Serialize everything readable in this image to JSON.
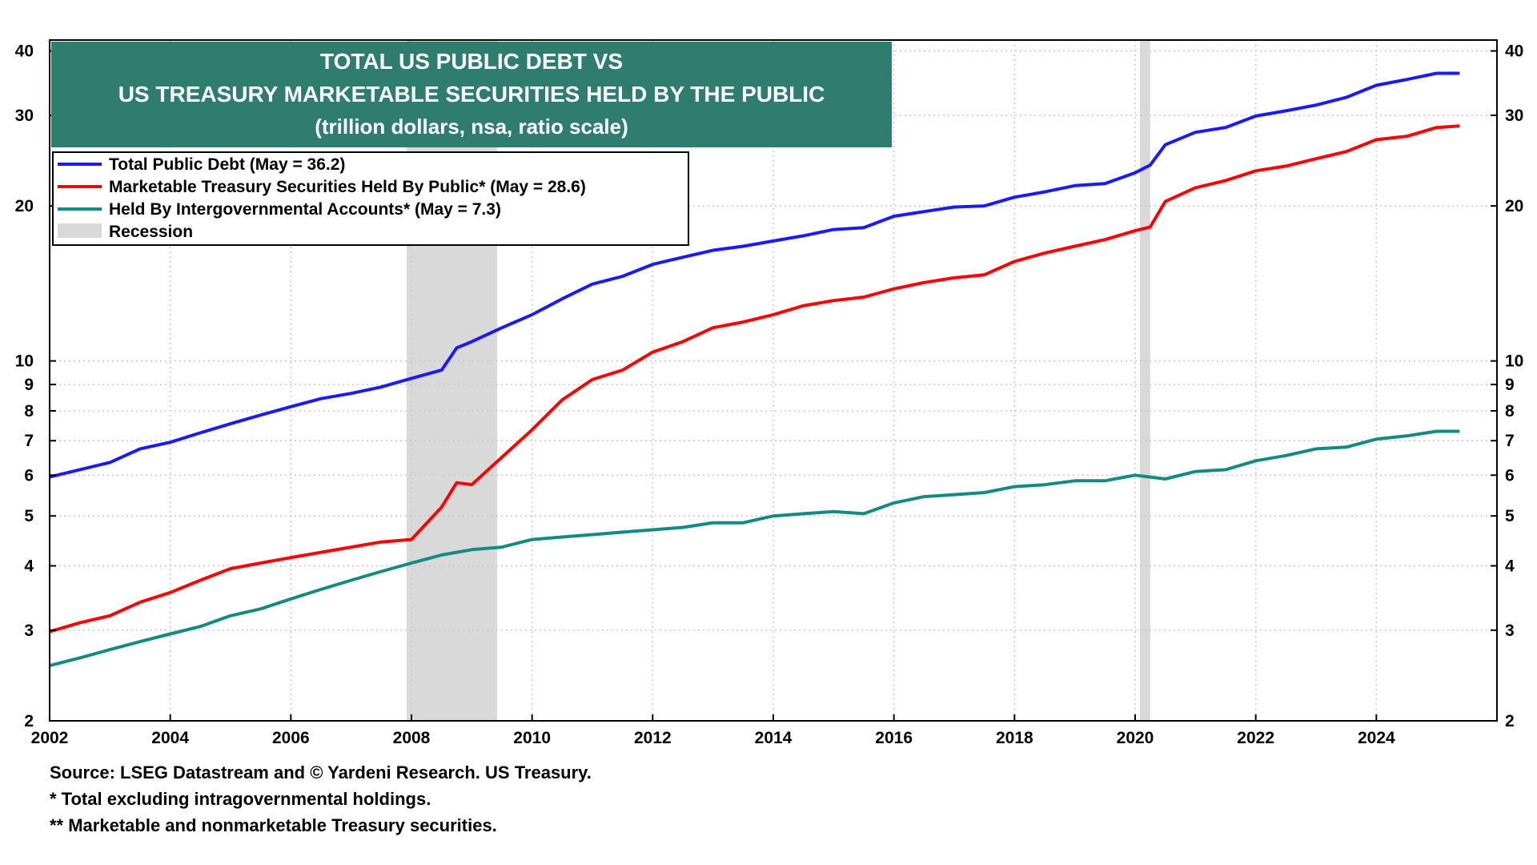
{
  "chart_data": {
    "type": "line",
    "title": [
      "TOTAL US PUBLIC DEBT VS",
      "US TREASURY MARKETABLE SECURITIES HELD BY THE PUBLIC",
      "(trillion dollars, nsa, ratio scale)"
    ],
    "yscale": "log",
    "ylim": [
      2,
      42
    ],
    "xlim": [
      2002,
      2026
    ],
    "y_ticks": [
      2,
      3,
      4,
      5,
      6,
      7,
      8,
      9,
      10,
      20,
      30,
      40
    ],
    "x_ticks": [
      2002,
      2004,
      2006,
      2008,
      2010,
      2012,
      2014,
      2016,
      2018,
      2020,
      2022,
      2024
    ],
    "grid": true,
    "legend_position": "top-left",
    "recessions": [
      [
        2007.92,
        2009.42
      ],
      [
        2020.08,
        2020.25
      ]
    ],
    "series": [
      {
        "name": "Total Public Debt (May = 36.2)",
        "color": "#1a1aff",
        "points": [
          [
            2002.0,
            5.95
          ],
          [
            2002.5,
            6.15
          ],
          [
            2003.0,
            6.35
          ],
          [
            2003.5,
            6.75
          ],
          [
            2004.0,
            6.95
          ],
          [
            2004.5,
            7.25
          ],
          [
            2005.0,
            7.55
          ],
          [
            2005.5,
            7.85
          ],
          [
            2006.0,
            8.15
          ],
          [
            2006.5,
            8.45
          ],
          [
            2007.0,
            8.65
          ],
          [
            2007.5,
            8.9
          ],
          [
            2008.0,
            9.25
          ],
          [
            2008.5,
            9.6
          ],
          [
            2008.75,
            10.6
          ],
          [
            2009.0,
            10.9
          ],
          [
            2009.5,
            11.6
          ],
          [
            2010.0,
            12.3
          ],
          [
            2010.5,
            13.2
          ],
          [
            2011.0,
            14.1
          ],
          [
            2011.5,
            14.6
          ],
          [
            2012.0,
            15.4
          ],
          [
            2012.5,
            15.9
          ],
          [
            2013.0,
            16.4
          ],
          [
            2013.5,
            16.7
          ],
          [
            2014.0,
            17.1
          ],
          [
            2014.5,
            17.5
          ],
          [
            2015.0,
            18.0
          ],
          [
            2015.5,
            18.15
          ],
          [
            2016.0,
            19.1
          ],
          [
            2016.5,
            19.5
          ],
          [
            2017.0,
            19.9
          ],
          [
            2017.5,
            20.0
          ],
          [
            2018.0,
            20.8
          ],
          [
            2018.5,
            21.3
          ],
          [
            2019.0,
            21.9
          ],
          [
            2019.5,
            22.1
          ],
          [
            2020.0,
            23.2
          ],
          [
            2020.25,
            24.0
          ],
          [
            2020.5,
            26.3
          ],
          [
            2021.0,
            27.8
          ],
          [
            2021.5,
            28.4
          ],
          [
            2022.0,
            29.9
          ],
          [
            2022.5,
            30.6
          ],
          [
            2023.0,
            31.4
          ],
          [
            2023.5,
            32.5
          ],
          [
            2024.0,
            34.3
          ],
          [
            2024.5,
            35.2
          ],
          [
            2025.0,
            36.2
          ],
          [
            2025.38,
            36.2
          ]
        ]
      },
      {
        "name": "Marketable Treasury Securities Held By Public* (May = 28.6)",
        "color": "#ff0000",
        "points": [
          [
            2002.0,
            2.98
          ],
          [
            2002.5,
            3.1
          ],
          [
            2003.0,
            3.2
          ],
          [
            2003.5,
            3.4
          ],
          [
            2004.0,
            3.55
          ],
          [
            2004.5,
            3.75
          ],
          [
            2005.0,
            3.95
          ],
          [
            2005.5,
            4.05
          ],
          [
            2006.0,
            4.15
          ],
          [
            2006.5,
            4.25
          ],
          [
            2007.0,
            4.35
          ],
          [
            2007.5,
            4.45
          ],
          [
            2008.0,
            4.5
          ],
          [
            2008.5,
            5.2
          ],
          [
            2008.75,
            5.8
          ],
          [
            2009.0,
            5.75
          ],
          [
            2009.5,
            6.5
          ],
          [
            2010.0,
            7.35
          ],
          [
            2010.5,
            8.4
          ],
          [
            2011.0,
            9.2
          ],
          [
            2011.5,
            9.6
          ],
          [
            2012.0,
            10.4
          ],
          [
            2012.5,
            10.9
          ],
          [
            2013.0,
            11.6
          ],
          [
            2013.5,
            11.9
          ],
          [
            2014.0,
            12.3
          ],
          [
            2014.5,
            12.8
          ],
          [
            2015.0,
            13.1
          ],
          [
            2015.5,
            13.3
          ],
          [
            2016.0,
            13.8
          ],
          [
            2016.5,
            14.2
          ],
          [
            2017.0,
            14.5
          ],
          [
            2017.5,
            14.7
          ],
          [
            2018.0,
            15.6
          ],
          [
            2018.5,
            16.2
          ],
          [
            2019.0,
            16.7
          ],
          [
            2019.5,
            17.2
          ],
          [
            2020.0,
            17.9
          ],
          [
            2020.25,
            18.2
          ],
          [
            2020.5,
            20.4
          ],
          [
            2021.0,
            21.7
          ],
          [
            2021.5,
            22.4
          ],
          [
            2022.0,
            23.4
          ],
          [
            2022.5,
            23.9
          ],
          [
            2023.0,
            24.7
          ],
          [
            2023.5,
            25.5
          ],
          [
            2024.0,
            26.9
          ],
          [
            2024.5,
            27.3
          ],
          [
            2025.0,
            28.4
          ],
          [
            2025.38,
            28.6
          ]
        ]
      },
      {
        "name": "Held By Intergovernmental Accounts* (May = 7.3)",
        "color": "#138a82",
        "points": [
          [
            2002.0,
            2.56
          ],
          [
            2002.5,
            2.65
          ],
          [
            2003.0,
            2.75
          ],
          [
            2003.5,
            2.85
          ],
          [
            2004.0,
            2.95
          ],
          [
            2004.5,
            3.05
          ],
          [
            2005.0,
            3.2
          ],
          [
            2005.5,
            3.3
          ],
          [
            2006.0,
            3.45
          ],
          [
            2006.5,
            3.6
          ],
          [
            2007.0,
            3.75
          ],
          [
            2007.5,
            3.9
          ],
          [
            2008.0,
            4.05
          ],
          [
            2008.5,
            4.2
          ],
          [
            2009.0,
            4.3
          ],
          [
            2009.5,
            4.35
          ],
          [
            2010.0,
            4.5
          ],
          [
            2010.5,
            4.55
          ],
          [
            2011.0,
            4.6
          ],
          [
            2011.5,
            4.65
          ],
          [
            2012.0,
            4.7
          ],
          [
            2012.5,
            4.75
          ],
          [
            2013.0,
            4.85
          ],
          [
            2013.5,
            4.85
          ],
          [
            2014.0,
            5.0
          ],
          [
            2014.5,
            5.05
          ],
          [
            2015.0,
            5.1
          ],
          [
            2015.5,
            5.05
          ],
          [
            2016.0,
            5.3
          ],
          [
            2016.5,
            5.45
          ],
          [
            2017.0,
            5.5
          ],
          [
            2017.5,
            5.55
          ],
          [
            2018.0,
            5.7
          ],
          [
            2018.5,
            5.75
          ],
          [
            2019.0,
            5.85
          ],
          [
            2019.5,
            5.85
          ],
          [
            2020.0,
            6.0
          ],
          [
            2020.5,
            5.9
          ],
          [
            2021.0,
            6.1
          ],
          [
            2021.5,
            6.15
          ],
          [
            2022.0,
            6.4
          ],
          [
            2022.5,
            6.55
          ],
          [
            2023.0,
            6.75
          ],
          [
            2023.5,
            6.8
          ],
          [
            2024.0,
            7.05
          ],
          [
            2024.5,
            7.15
          ],
          [
            2025.0,
            7.3
          ],
          [
            2025.38,
            7.3
          ]
        ]
      }
    ],
    "legend_recession_label": "Recession",
    "footnotes": [
      "Source: LSEG Datastream and © Yardeni Research. US Treasury.",
      "* Total excluding intragovernmental holdings.",
      "** Marketable and nonmarketable Treasury securities."
    ]
  },
  "colors": {
    "title_bg": "#2e7d6f",
    "recession": "#d9d9d9",
    "grid": "#c8c8c8"
  }
}
